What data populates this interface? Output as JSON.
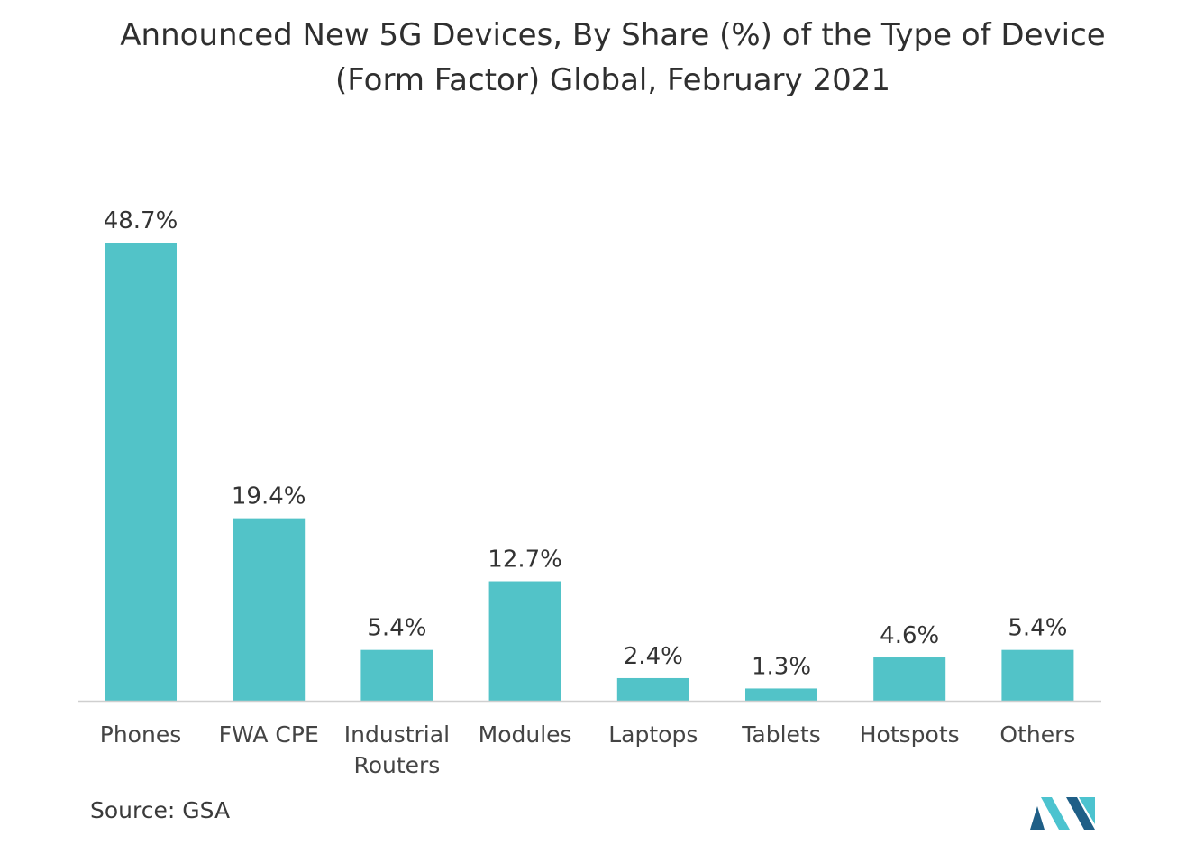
{
  "title_line1": "Announced New 5G Devices, By Share (%) of the Type of Device",
  "title_line2": "(Form Factor) Global, February 2021",
  "source": "Source: GSA",
  "chart_data": {
    "type": "bar",
    "title": "Announced New 5G Devices, By Share (%) of the Type of Device (Form Factor) Global, February 2021",
    "categories": [
      [
        "Phones"
      ],
      [
        "FWA CPE"
      ],
      [
        "Industrial",
        "Routers"
      ],
      [
        "Modules"
      ],
      [
        "Laptops"
      ],
      [
        "Tablets"
      ],
      [
        "Hotspots"
      ],
      [
        "Others"
      ]
    ],
    "values": [
      48.7,
      19.4,
      5.4,
      12.7,
      2.4,
      1.3,
      4.6,
      5.4
    ],
    "data_labels": [
      "48.7%",
      "19.4%",
      "5.4%",
      "12.7%",
      "2.4%",
      "1.3%",
      "4.6%",
      "5.4%"
    ],
    "ylim": [
      0,
      48.7
    ],
    "grid": false,
    "xlabel": "",
    "ylabel": "",
    "bar_color": "#52c3c8",
    "axis_color": "#cfcfcf"
  },
  "colors": {
    "logo_dark": "#1f5f87",
    "logo_light": "#4cc3cf"
  }
}
